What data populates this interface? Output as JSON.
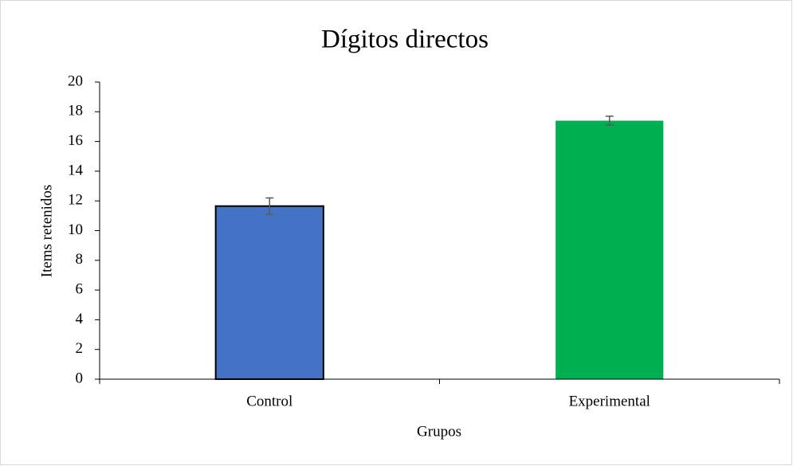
{
  "chart_data": {
    "type": "bar",
    "title": "Dígitos directos",
    "xlabel": "Grupos",
    "ylabel": "Items retenidos",
    "categories": [
      "Control",
      "Experimental"
    ],
    "values": [
      11.65,
      17.4
    ],
    "errors": [
      0.55,
      0.3
    ],
    "colors": [
      "#4472c4",
      "#00b050"
    ],
    "edgecolors": [
      "#000000",
      null
    ],
    "ylim": [
      0,
      20
    ],
    "yticks": [
      0,
      2,
      4,
      6,
      8,
      10,
      12,
      14,
      16,
      18,
      20
    ],
    "grid": false
  }
}
